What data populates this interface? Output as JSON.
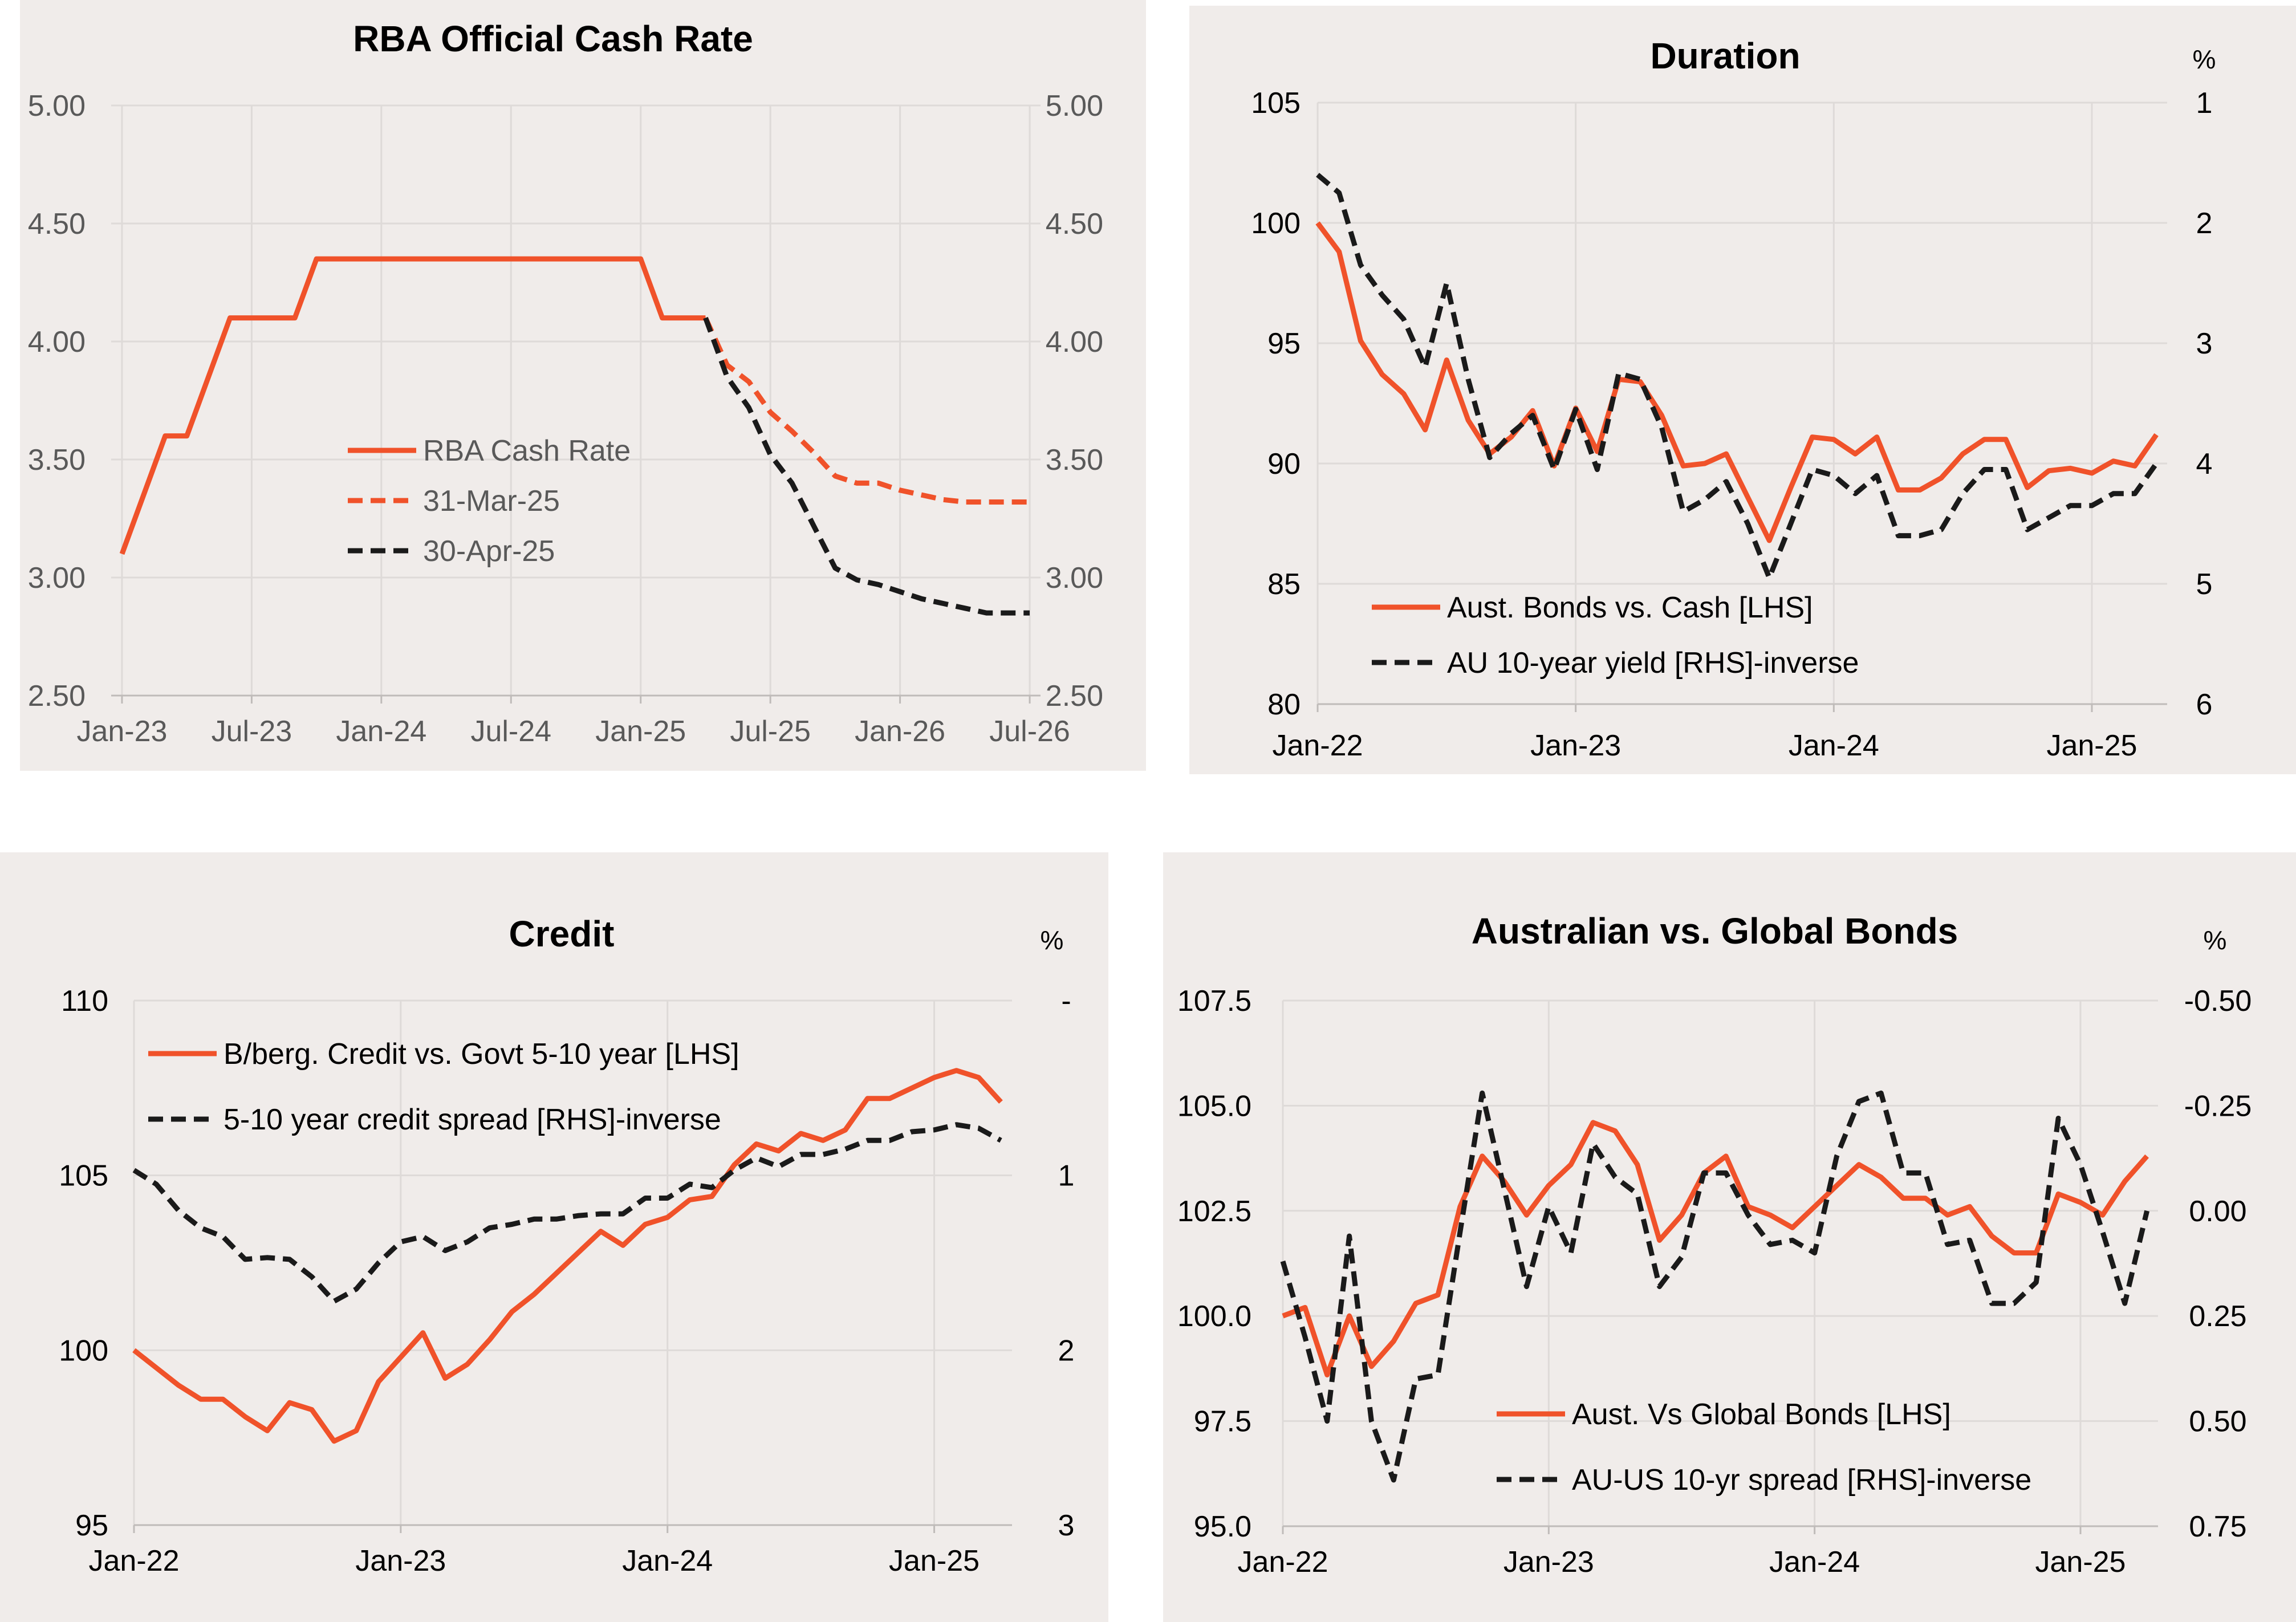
{
  "colors": {
    "orange": "#f0522a",
    "black": "#1a1a1a",
    "grid": "#dedad8",
    "muted_text": "#595959",
    "tick_text": "#000000"
  },
  "chart_data": [
    {
      "type": "line",
      "title": "RBA Official Cash Rate",
      "xlabel": "",
      "ylabel": "",
      "x_ticks": [
        "Jan-23",
        "Jul-23",
        "Jan-24",
        "Jul-24",
        "Jan-25",
        "Jul-25",
        "Jan-26",
        "Jul-26"
      ],
      "x_tick_months": [
        0,
        6,
        12,
        18,
        24,
        30,
        36,
        42
      ],
      "y_ticks": [
        "2.50",
        "3.00",
        "3.50",
        "4.00",
        "4.50",
        "5.00"
      ],
      "y2_ticks": [
        "2.50",
        "3.00",
        "3.50",
        "4.00",
        "4.50",
        "5.00"
      ],
      "x_range_months": [
        -0.5,
        42.5
      ],
      "ylim": [
        2.5,
        5.0
      ],
      "legend_position": "center",
      "series": [
        {
          "name": "RBA Cash Rate",
          "style": "solid",
          "color": "orange",
          "x_months": [
            0,
            2,
            3,
            5,
            6,
            7,
            8,
            9,
            10,
            11,
            12,
            13,
            14,
            15,
            16,
            17,
            18,
            19,
            20,
            21,
            22,
            23,
            24,
            25,
            26,
            27
          ],
          "values": [
            3.1,
            3.6,
            3.6,
            4.1,
            4.1,
            4.1,
            4.1,
            4.35,
            4.35,
            4.35,
            4.35,
            4.35,
            4.35,
            4.35,
            4.35,
            4.35,
            4.35,
            4.35,
            4.35,
            4.35,
            4.35,
            4.35,
            4.35,
            4.1,
            4.1,
            4.1
          ]
        },
        {
          "name": "31-Mar-25",
          "style": "dashed",
          "color": "orange",
          "x_months": [
            27,
            28,
            29,
            30,
            31,
            32,
            33,
            34,
            35,
            36,
            37,
            38,
            39,
            40,
            41,
            42
          ],
          "values": [
            4.1,
            3.9,
            3.83,
            3.7,
            3.62,
            3.53,
            3.43,
            3.4,
            3.4,
            3.37,
            3.35,
            3.33,
            3.32,
            3.32,
            3.32,
            3.32
          ]
        },
        {
          "name": "30-Apr-25",
          "style": "dashed",
          "color": "black",
          "x_months": [
            27,
            28,
            29,
            30,
            31,
            32,
            33,
            34,
            35,
            36,
            37,
            38,
            39,
            40,
            41,
            42
          ],
          "values": [
            4.1,
            3.85,
            3.72,
            3.52,
            3.4,
            3.22,
            3.04,
            2.99,
            2.97,
            2.94,
            2.91,
            2.89,
            2.87,
            2.85,
            2.85,
            2.85
          ]
        }
      ]
    },
    {
      "type": "line",
      "title": "Duration",
      "xlabel": "",
      "ylabel": "",
      "y2label": "%",
      "x_ticks": [
        "Jan-22",
        "Jan-23",
        "Jan-24",
        "Jan-25"
      ],
      "x_tick_months": [
        0,
        12,
        24,
        36
      ],
      "y_ticks": [
        "80",
        "85",
        "90",
        "95",
        "100",
        "105"
      ],
      "y2_ticks": [
        "6",
        "5",
        "4",
        "3",
        "2",
        "1"
      ],
      "x_range_months": [
        0,
        39.5
      ],
      "ylim": [
        80,
        105
      ],
      "y2lim": [
        6,
        1
      ],
      "y2_inverted": true,
      "legend_position": "bottom-center",
      "series": [
        {
          "name": "Aust. Bonds vs. Cash [LHS]",
          "style": "solid",
          "color": "orange",
          "axis": "left",
          "x_months": [
            0,
            1,
            2,
            3,
            4,
            5,
            6,
            7,
            8,
            9,
            10,
            11,
            12,
            13,
            14,
            15,
            16,
            17,
            18,
            19,
            20,
            21,
            22,
            23,
            24,
            25,
            26,
            27,
            28,
            29,
            30,
            31,
            32,
            33,
            34,
            35,
            36,
            37,
            38,
            39
          ],
          "values": [
            100.0,
            98.8,
            95.1,
            93.7,
            92.9,
            91.4,
            94.3,
            91.8,
            90.4,
            91.1,
            92.2,
            89.9,
            92.3,
            90.5,
            93.5,
            93.4,
            92.0,
            89.9,
            90.0,
            90.4,
            88.6,
            86.8,
            89.0,
            91.1,
            91.0,
            90.4,
            91.1,
            88.9,
            88.9,
            89.4,
            90.4,
            91.0,
            91.0,
            89.0,
            89.7,
            89.8,
            89.6,
            90.1,
            89.9,
            91.2
          ]
        },
        {
          "name": "AU 10-year yield [RHS]-inverse",
          "style": "dashed",
          "color": "black",
          "axis": "right",
          "x_months": [
            0,
            1,
            2,
            3,
            4,
            5,
            6,
            7,
            8,
            9,
            10,
            11,
            12,
            13,
            14,
            15,
            16,
            17,
            18,
            19,
            20,
            21,
            22,
            23,
            24,
            25,
            26,
            27,
            28,
            29,
            30,
            31,
            32,
            33,
            34,
            35,
            36,
            37,
            38,
            39
          ],
          "values": [
            1.6,
            1.75,
            2.35,
            2.6,
            2.8,
            3.2,
            2.5,
            3.3,
            3.95,
            3.75,
            3.6,
            4.05,
            3.55,
            4.05,
            3.25,
            3.3,
            3.7,
            4.4,
            4.3,
            4.15,
            4.5,
            4.95,
            4.5,
            4.05,
            4.1,
            4.25,
            4.1,
            4.6,
            4.6,
            4.55,
            4.25,
            4.05,
            4.05,
            4.55,
            4.45,
            4.35,
            4.35,
            4.25,
            4.25,
            4.0
          ]
        }
      ]
    },
    {
      "type": "line",
      "title": "Credit",
      "xlabel": "",
      "ylabel": "",
      "y2label": "%",
      "x_ticks": [
        "Jan-22",
        "Jan-23",
        "Jan-24",
        "Jan-25"
      ],
      "x_tick_months": [
        0,
        12,
        24,
        36
      ],
      "y_ticks": [
        "95",
        "100",
        "105",
        "110"
      ],
      "y2_ticks": [
        "3",
        "2",
        "1",
        "-"
      ],
      "x_range_months": [
        0,
        39.5
      ],
      "ylim": [
        95,
        110
      ],
      "y2lim": [
        3,
        0
      ],
      "y2_inverted": true,
      "legend_position": "top-left",
      "series": [
        {
          "name": "B/berg. Credit vs. Govt 5-10 year [LHS]",
          "style": "solid",
          "color": "orange",
          "axis": "left",
          "x_months": [
            0,
            1,
            2,
            3,
            4,
            5,
            6,
            7,
            8,
            9,
            10,
            11,
            12,
            13,
            14,
            15,
            16,
            17,
            18,
            19,
            20,
            21,
            22,
            23,
            24,
            25,
            26,
            27,
            28,
            29,
            30,
            31,
            32,
            33,
            34,
            35,
            36,
            37,
            38,
            39
          ],
          "values": [
            100.0,
            99.5,
            99.0,
            98.6,
            98.6,
            98.1,
            97.7,
            98.5,
            98.3,
            97.4,
            97.7,
            99.1,
            99.8,
            100.5,
            99.2,
            99.6,
            100.3,
            101.1,
            101.6,
            102.2,
            102.8,
            103.4,
            103.0,
            103.6,
            103.8,
            104.3,
            104.4,
            105.3,
            105.9,
            105.7,
            106.2,
            106.0,
            106.3,
            107.2,
            107.2,
            107.5,
            107.8,
            108.0,
            107.8,
            107.1
          ]
        },
        {
          "name": "5-10 year credit spread [RHS]-inverse",
          "style": "dashed",
          "color": "black",
          "axis": "right",
          "x_months": [
            0,
            1,
            2,
            3,
            4,
            5,
            6,
            7,
            8,
            9,
            10,
            11,
            12,
            13,
            14,
            15,
            16,
            17,
            18,
            19,
            20,
            21,
            22,
            23,
            24,
            25,
            26,
            27,
            28,
            29,
            30,
            31,
            32,
            33,
            34,
            35,
            36,
            37,
            38,
            39
          ],
          "values": [
            0.97,
            1.05,
            1.2,
            1.3,
            1.35,
            1.48,
            1.47,
            1.48,
            1.58,
            1.72,
            1.65,
            1.5,
            1.38,
            1.35,
            1.43,
            1.38,
            1.3,
            1.28,
            1.25,
            1.25,
            1.23,
            1.22,
            1.22,
            1.13,
            1.13,
            1.05,
            1.07,
            0.97,
            0.9,
            0.95,
            0.88,
            0.88,
            0.85,
            0.8,
            0.8,
            0.75,
            0.74,
            0.71,
            0.73,
            0.8
          ]
        }
      ]
    },
    {
      "type": "line",
      "title": "Australian vs. Global Bonds",
      "xlabel": "",
      "ylabel": "",
      "y2label": "%",
      "x_ticks": [
        "Jan-22",
        "Jan-23",
        "Jan-24",
        "Jan-25"
      ],
      "x_tick_months": [
        0,
        12,
        24,
        36
      ],
      "y_ticks": [
        "95.0",
        "97.5",
        "100.0",
        "102.5",
        "105.0",
        "107.5"
      ],
      "y2_ticks": [
        "0.75",
        "0.50",
        "0.25",
        "0.00",
        "-0.25",
        "-0.50"
      ],
      "x_range_months": [
        0,
        39.5
      ],
      "ylim": [
        95,
        107.5
      ],
      "y2lim": [
        0.75,
        -0.5
      ],
      "y2_inverted": true,
      "legend_position": "bottom-center",
      "series": [
        {
          "name": "Aust. Vs Global Bonds [LHS]",
          "style": "solid",
          "color": "orange",
          "axis": "left",
          "x_months": [
            0,
            1,
            2,
            3,
            4,
            5,
            6,
            7,
            8,
            9,
            10,
            11,
            12,
            13,
            14,
            15,
            16,
            17,
            18,
            19,
            20,
            21,
            22,
            23,
            24,
            25,
            26,
            27,
            28,
            29,
            30,
            31,
            32,
            33,
            34,
            35,
            36,
            37,
            38,
            39
          ],
          "values": [
            100.0,
            100.2,
            98.6,
            100.0,
            98.8,
            99.4,
            100.3,
            100.5,
            102.6,
            103.8,
            103.2,
            102.4,
            103.1,
            103.6,
            104.6,
            104.4,
            103.6,
            101.8,
            102.4,
            103.4,
            103.8,
            102.6,
            102.4,
            102.1,
            102.6,
            103.1,
            103.6,
            103.3,
            102.8,
            102.8,
            102.4,
            102.6,
            101.9,
            101.5,
            101.5,
            102.9,
            102.7,
            102.4,
            103.2,
            103.8
          ]
        },
        {
          "name": "AU-US 10-yr spread [RHS]-inverse",
          "style": "dashed",
          "color": "black",
          "axis": "right",
          "x_months": [
            0,
            1,
            2,
            3,
            4,
            5,
            6,
            7,
            8,
            9,
            10,
            11,
            12,
            13,
            14,
            15,
            16,
            17,
            18,
            19,
            20,
            21,
            22,
            23,
            24,
            25,
            26,
            27,
            28,
            29,
            30,
            31,
            32,
            33,
            34,
            35,
            36,
            37,
            38,
            39
          ],
          "values": [
            0.12,
            0.3,
            0.5,
            0.06,
            0.5,
            0.64,
            0.4,
            0.39,
            0.05,
            -0.28,
            -0.05,
            0.18,
            -0.01,
            0.1,
            -0.16,
            -0.08,
            -0.04,
            0.18,
            0.11,
            -0.09,
            -0.09,
            0.01,
            0.08,
            0.07,
            0.1,
            -0.13,
            -0.26,
            -0.28,
            -0.09,
            -0.09,
            0.08,
            0.07,
            0.22,
            0.22,
            0.17,
            -0.22,
            -0.11,
            0.05,
            0.22,
            0.0
          ]
        }
      ]
    }
  ]
}
